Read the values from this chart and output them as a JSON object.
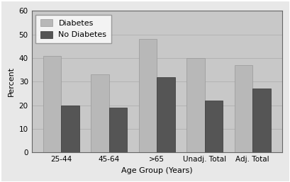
{
  "categories": [
    "25-44",
    "45-64",
    ">65",
    "Unadj. Total",
    "Adj. Total"
  ],
  "diabetes_values": [
    41,
    33,
    48,
    40,
    37
  ],
  "no_diabetes_values": [
    20,
    19,
    32,
    22,
    27
  ],
  "diabetes_color": "#b8b8b8",
  "no_diabetes_color": "#555555",
  "xlabel": "Age Group (Years)",
  "ylabel": "Percent",
  "ylim": [
    0,
    60
  ],
  "yticks": [
    0,
    10,
    20,
    30,
    40,
    50,
    60
  ],
  "legend_labels": [
    "Diabetes",
    "No Diabetes"
  ],
  "figure_facecolor": "#e8e8e8",
  "plot_bg_color": "#c8c8c8",
  "bar_width": 0.38,
  "axis_fontsize": 8,
  "tick_fontsize": 7.5,
  "legend_fontsize": 8
}
